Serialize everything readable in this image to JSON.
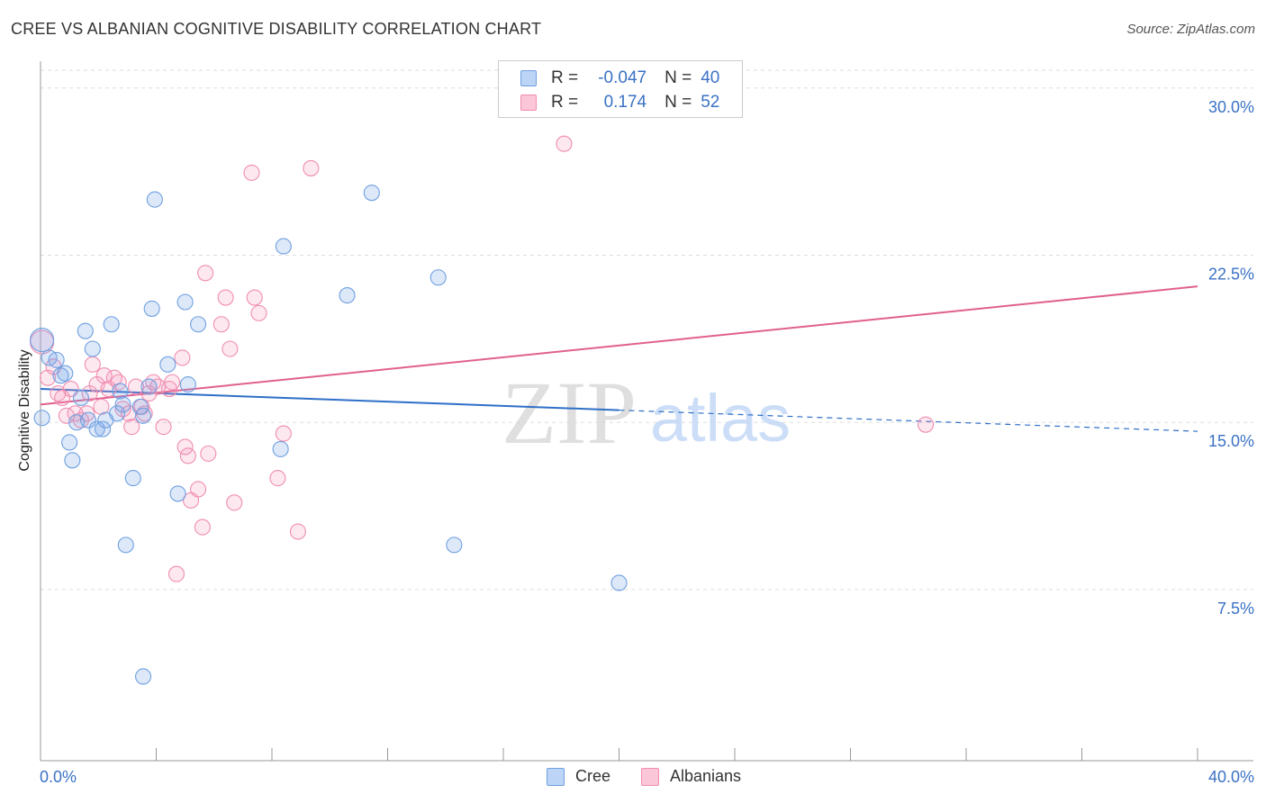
{
  "title": "CREE VS ALBANIAN COGNITIVE DISABILITY CORRELATION CHART",
  "source": "Source: ZipAtlas.com",
  "watermark": {
    "zip": "ZIP",
    "atlas": "atlas"
  },
  "legend": {
    "rows": [
      {
        "r_label": "R =",
        "r_value": "-0.047",
        "n_label": "N =",
        "n_value": "40"
      },
      {
        "r_label": "R =",
        "r_value": "0.174",
        "n_label": "N =",
        "n_value": "52"
      }
    ]
  },
  "bottom_legend": {
    "cree": "Cree",
    "albanians": "Albanians"
  },
  "chart_data": {
    "type": "scatter",
    "title": "CREE VS ALBANIAN COGNITIVE DISABILITY CORRELATION CHART",
    "xlabel": "",
    "ylabel": "Cognitive Disability",
    "xlim": [
      0,
      40
    ],
    "ylim": [
      0,
      31
    ],
    "x_tick_labels": [
      "0.0%",
      "40.0%"
    ],
    "y_ticks": [
      7.5,
      15.0,
      22.5,
      30.0
    ],
    "y_tick_labels": [
      "7.5%",
      "15.0%",
      "22.5%",
      "30.0%"
    ],
    "colors": {
      "cree": "#6fa0e0",
      "cree_line": "#2f6fc8",
      "albanians": "#f08db0",
      "albanians_line": "#e0608f",
      "tick_text": "#3a72c4"
    },
    "series": [
      {
        "name": "Cree",
        "R": -0.047,
        "N": 40,
        "trend": {
          "x0": 0,
          "y0": 16.5,
          "x_solid_end": 20,
          "x1": 40,
          "y1": 14.6
        },
        "points": [
          [
            0.05,
            18.7
          ],
          [
            0.3,
            17.9
          ],
          [
            0.55,
            17.8
          ],
          [
            0.7,
            17.1
          ],
          [
            0.85,
            17.2
          ],
          [
            1.0,
            14.1
          ],
          [
            1.1,
            13.3
          ],
          [
            1.25,
            15.0
          ],
          [
            1.4,
            16.1
          ],
          [
            1.55,
            19.1
          ],
          [
            1.65,
            15.1
          ],
          [
            1.8,
            18.3
          ],
          [
            1.95,
            14.7
          ],
          [
            2.15,
            14.7
          ],
          [
            2.25,
            15.1
          ],
          [
            2.45,
            19.4
          ],
          [
            2.65,
            15.4
          ],
          [
            2.75,
            16.4
          ],
          [
            2.85,
            15.8
          ],
          [
            2.95,
            9.5
          ],
          [
            3.2,
            12.5
          ],
          [
            3.45,
            15.7
          ],
          [
            3.55,
            15.3
          ],
          [
            3.55,
            3.6
          ],
          [
            3.75,
            16.6
          ],
          [
            3.85,
            20.1
          ],
          [
            3.95,
            25.0
          ],
          [
            4.4,
            17.6
          ],
          [
            4.75,
            11.8
          ],
          [
            5.0,
            20.4
          ],
          [
            5.1,
            16.7
          ],
          [
            5.45,
            19.4
          ],
          [
            8.3,
            13.8
          ],
          [
            8.4,
            22.9
          ],
          [
            10.6,
            20.7
          ],
          [
            11.45,
            25.3
          ],
          [
            13.75,
            21.5
          ],
          [
            14.3,
            9.5
          ],
          [
            20.0,
            7.8
          ],
          [
            0.05,
            15.2
          ]
        ]
      },
      {
        "name": "Albanians",
        "R": 0.174,
        "N": 52,
        "trend": {
          "x0": 0,
          "y0": 15.8,
          "x1": 40,
          "y1": 21.1
        },
        "points": [
          [
            0.05,
            18.6
          ],
          [
            0.25,
            17.0
          ],
          [
            0.45,
            17.5
          ],
          [
            0.6,
            16.3
          ],
          [
            0.75,
            16.1
          ],
          [
            0.9,
            15.3
          ],
          [
            1.05,
            16.5
          ],
          [
            1.2,
            15.4
          ],
          [
            1.4,
            15.1
          ],
          [
            1.6,
            15.4
          ],
          [
            1.7,
            16.3
          ],
          [
            1.8,
            17.6
          ],
          [
            1.95,
            16.7
          ],
          [
            2.1,
            15.7
          ],
          [
            2.2,
            17.1
          ],
          [
            2.35,
            16.5
          ],
          [
            2.55,
            17.0
          ],
          [
            2.7,
            16.8
          ],
          [
            2.85,
            15.6
          ],
          [
            3.05,
            15.4
          ],
          [
            3.15,
            14.8
          ],
          [
            3.3,
            16.6
          ],
          [
            3.5,
            15.7
          ],
          [
            3.6,
            15.4
          ],
          [
            3.75,
            16.3
          ],
          [
            3.9,
            16.8
          ],
          [
            4.05,
            16.6
          ],
          [
            4.25,
            14.8
          ],
          [
            4.45,
            16.5
          ],
          [
            4.55,
            16.8
          ],
          [
            4.7,
            8.2
          ],
          [
            4.9,
            17.9
          ],
          [
            5.0,
            13.9
          ],
          [
            5.1,
            13.5
          ],
          [
            5.2,
            11.5
          ],
          [
            5.45,
            12.0
          ],
          [
            5.6,
            10.3
          ],
          [
            5.7,
            21.7
          ],
          [
            5.8,
            13.6
          ],
          [
            6.25,
            19.4
          ],
          [
            6.4,
            20.6
          ],
          [
            6.55,
            18.3
          ],
          [
            6.7,
            11.4
          ],
          [
            7.3,
            26.2
          ],
          [
            7.4,
            20.6
          ],
          [
            7.55,
            19.9
          ],
          [
            8.2,
            12.5
          ],
          [
            8.4,
            14.5
          ],
          [
            8.9,
            10.1
          ],
          [
            9.35,
            26.4
          ],
          [
            18.1,
            27.5
          ],
          [
            30.6,
            14.9
          ]
        ]
      }
    ]
  }
}
